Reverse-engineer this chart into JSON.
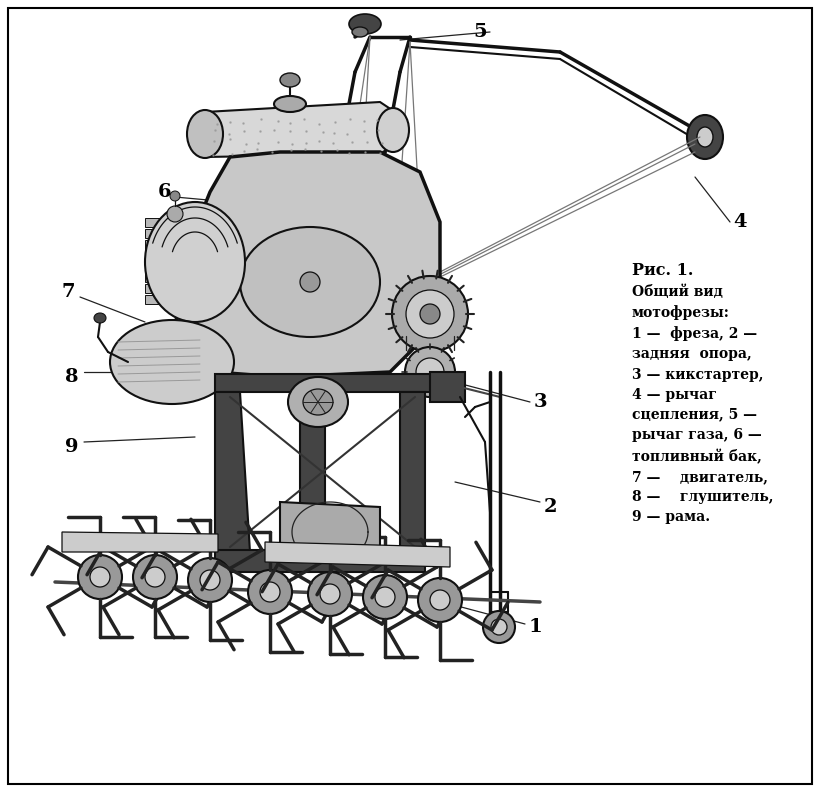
{
  "background_color": "#ffffff",
  "border_color": "#000000",
  "caption_title": "Рис. 1.",
  "caption_body": "Общий вид\nмотофрезы:\n1 —  фреза, 2 —\nзадняя  опора,\n3 — кикстартер,\n4 — рычаг\nсцепления, 5 —\nрычаг газа, 6 —\nтопливный бак,\n7 —    двигатель,\n8 —    глушитель,\n9 — рама.",
  "fig_width": 8.2,
  "fig_height": 7.92,
  "dpi": 100,
  "ink": "#111111",
  "dark": "#222222",
  "gray": "#777777",
  "lgray": "#cccccc",
  "dgray": "#444444",
  "black": "#000000"
}
